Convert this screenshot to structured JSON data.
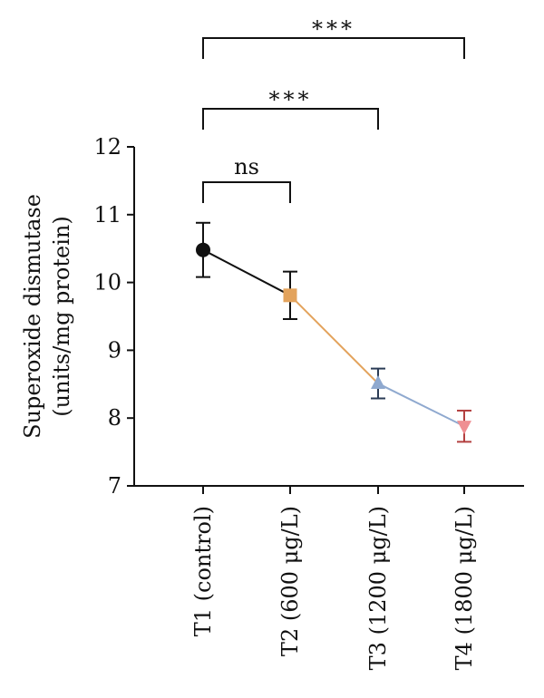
{
  "chart_data": {
    "type": "line",
    "ylabel_line1": "Superoxide dismutase",
    "ylabel_line2": "(units/mg protein)",
    "ylim": [
      7,
      12
    ],
    "yticks": [
      7,
      8,
      9,
      10,
      11,
      12
    ],
    "categories": [
      "T1 (control)",
      "T2 (600 μg/L)",
      "T3 (1200 μg/L)",
      "T4 (1800 μg/L)"
    ],
    "values": [
      10.48,
      9.81,
      8.51,
      7.88
    ],
    "errors": [
      0.4,
      0.35,
      0.22,
      0.23
    ],
    "markers": [
      "circle",
      "square",
      "triangle-up",
      "triangle-down"
    ],
    "colors": [
      "#111111",
      "#e3a35c",
      "#8fa9cf",
      "#e98c8c"
    ],
    "segment_colors": [
      "#111111",
      "#e3a35c",
      "#8fa9cf"
    ],
    "marker_fill_colors": [
      "#111111",
      "#e3a35c",
      "#8fa9cf",
      "#ef8f93"
    ],
    "errorbar_colors": [
      "#111111",
      "#111111",
      "#2a3b55",
      "#b34040"
    ],
    "significance": [
      {
        "from": 0,
        "to": 1,
        "label": "ns"
      },
      {
        "from": 0,
        "to": 2,
        "label": "***"
      },
      {
        "from": 0,
        "to": 3,
        "label": "***"
      }
    ]
  }
}
